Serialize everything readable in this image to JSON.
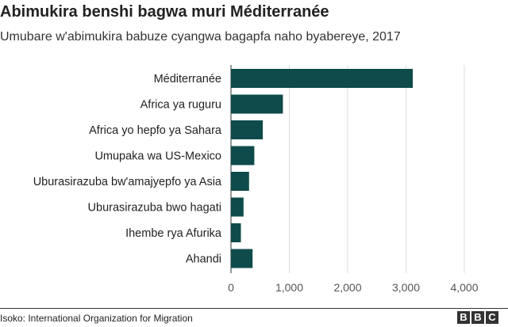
{
  "title": "Abimukira benshi bagwa muri Méditerranée",
  "subtitle": "Umubare w'abimukira babuze cyangwa bagapfa naho byabereye, 2017",
  "source": "Isoko: International Organization for Migration",
  "logo": "BBC",
  "chart_data": {
    "type": "bar",
    "orientation": "horizontal",
    "categories": [
      "Méditerranée",
      "Africa ya ruguru",
      "Africa yo hepfo ya Sahara",
      "Umupaka wa US-Mexico",
      "Uburasirazuba bw'amajyepfo ya Asia",
      "Uburasirazuba bwo hagati",
      "Ihembe rya Afurika",
      "Ahandi"
    ],
    "values": [
      3116,
      890,
      545,
      400,
      310,
      215,
      170,
      370
    ],
    "xlim": [
      0,
      4000
    ],
    "xticks": [
      0,
      1000,
      2000,
      3000,
      4000
    ],
    "xtick_labels": [
      "0",
      "1,000",
      "2,000",
      "3,000",
      "4,000"
    ],
    "bar_color": "#0f4b4b",
    "grid": true,
    "legend": "none"
  }
}
